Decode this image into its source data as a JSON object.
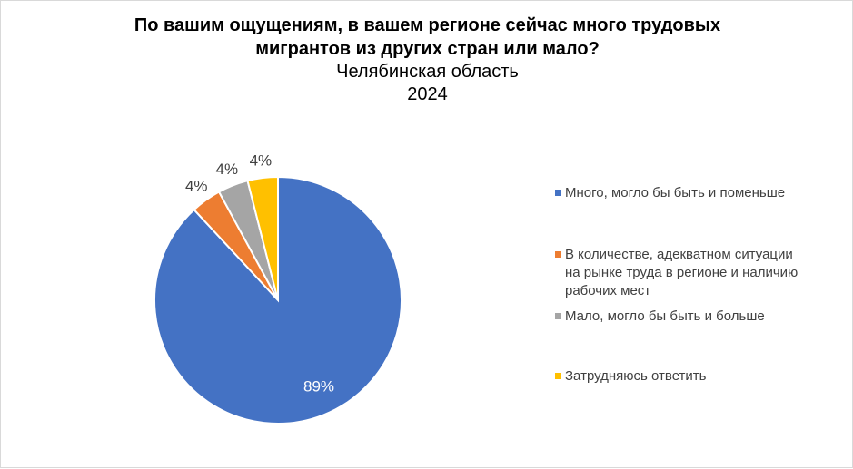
{
  "chart_data": {
    "type": "pie",
    "title": [
      "По вашим ощущениям, в вашем регионе сейчас много трудовых",
      "мигрантов из других стран или мало?"
    ],
    "subtitle": [
      "Челябинская область",
      "2024"
    ],
    "categories": [
      [
        "Много, могло бы быть и поменьше"
      ],
      [
        "В количестве, адекватном ситуации",
        "на рынке труда в регионе и наличию",
        "рабочих мест"
      ],
      [
        "Мало, могло бы быть и больше"
      ],
      [
        "Затрудняюсь ответить"
      ]
    ],
    "values": [
      89,
      4,
      4,
      4
    ],
    "data_labels": [
      "89%",
      "4%",
      "4%",
      "4%"
    ],
    "colors": [
      "#4472C4",
      "#ED7D31",
      "#A5A5A5",
      "#FFC000"
    ],
    "legend_position": "right"
  }
}
